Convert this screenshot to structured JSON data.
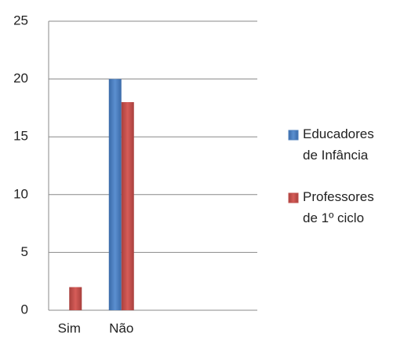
{
  "chart_data": {
    "type": "bar",
    "categories": [
      "Sim",
      "Não",
      null,
      null
    ],
    "series": [
      {
        "name": "Educadores de Infância",
        "color": "#4f81bd",
        "values": [
          0,
          20,
          null,
          null
        ]
      },
      {
        "name": "Professores de 1º ciclo",
        "color": "#c0504d",
        "values": [
          2,
          18,
          null,
          null
        ]
      }
    ],
    "ylim": [
      0,
      25
    ],
    "yticks": [
      0,
      5,
      10,
      15,
      20,
      25
    ],
    "grid": true,
    "legend": "right"
  }
}
